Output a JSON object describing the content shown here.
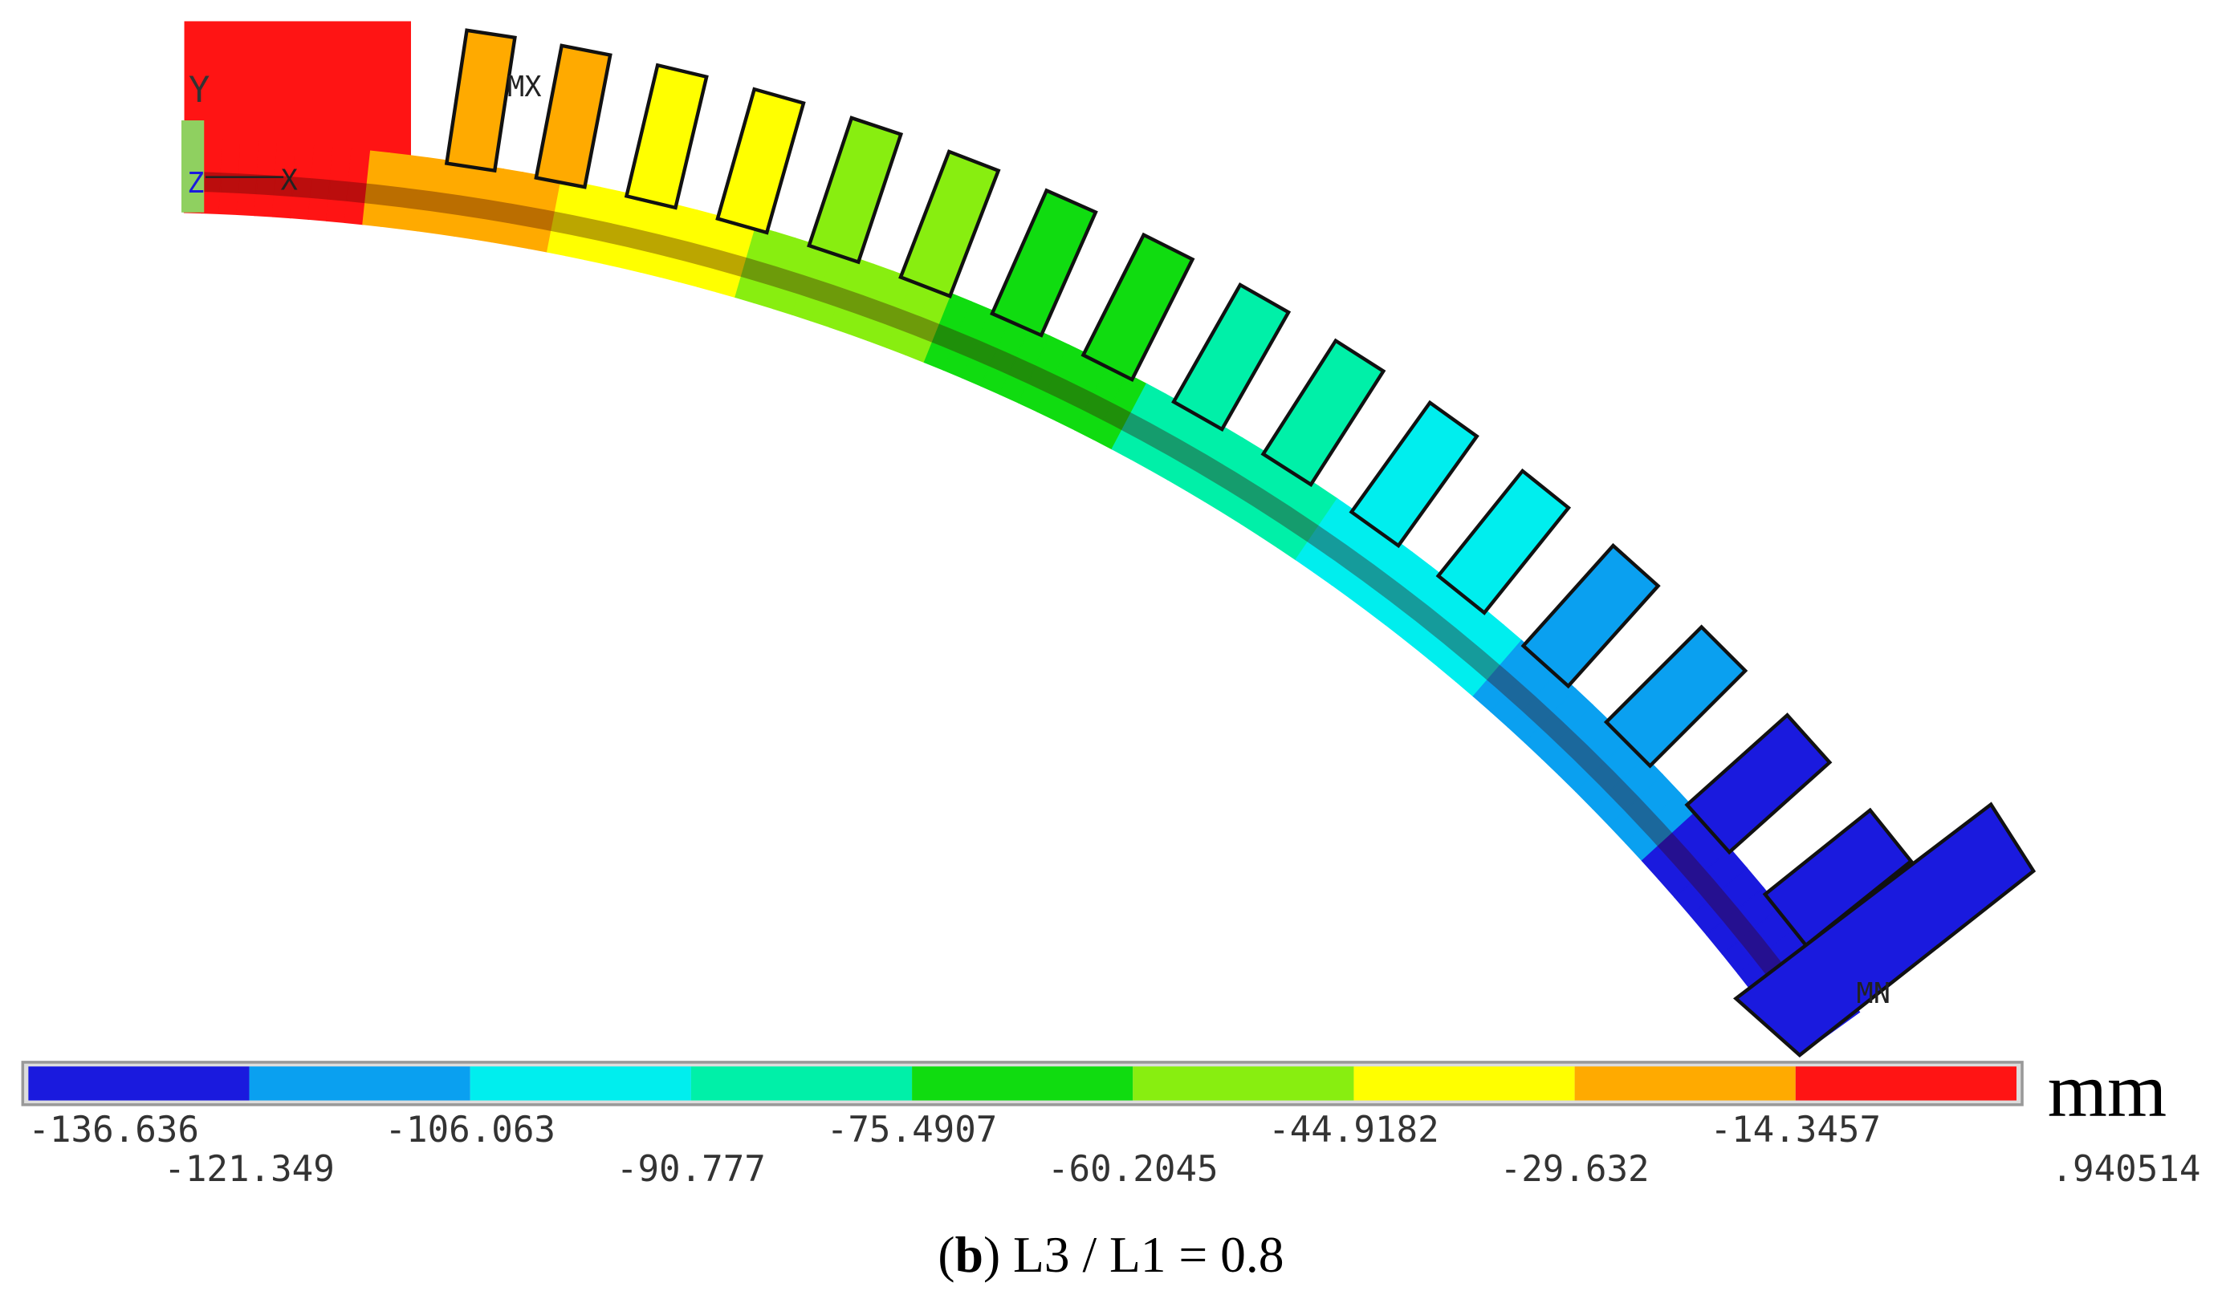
{
  "model_labels": {
    "y_axis": "Y",
    "z_axis": "Z",
    "x_axis": "X",
    "max": "MX",
    "min": "MN"
  },
  "colorbar": {
    "colors": [
      "#1a1ade",
      "#0aa0f0",
      "#00eeee",
      "#00f0a8",
      "#10dc10",
      "#88ee10",
      "#ffff00",
      "#ffaa00",
      "#ff1414"
    ],
    "ticks": [
      -136.636,
      -121.349,
      -106.063,
      -90.777,
      -75.4907,
      -60.2045,
      -44.9182,
      -29.632,
      -14.3457,
      {
        "value": 0.940514,
        "label": ".940514"
      }
    ],
    "unit": "mm"
  },
  "caption": {
    "open": "(",
    "label": "b",
    "text": ") L3 / L1 = 0.8"
  }
}
